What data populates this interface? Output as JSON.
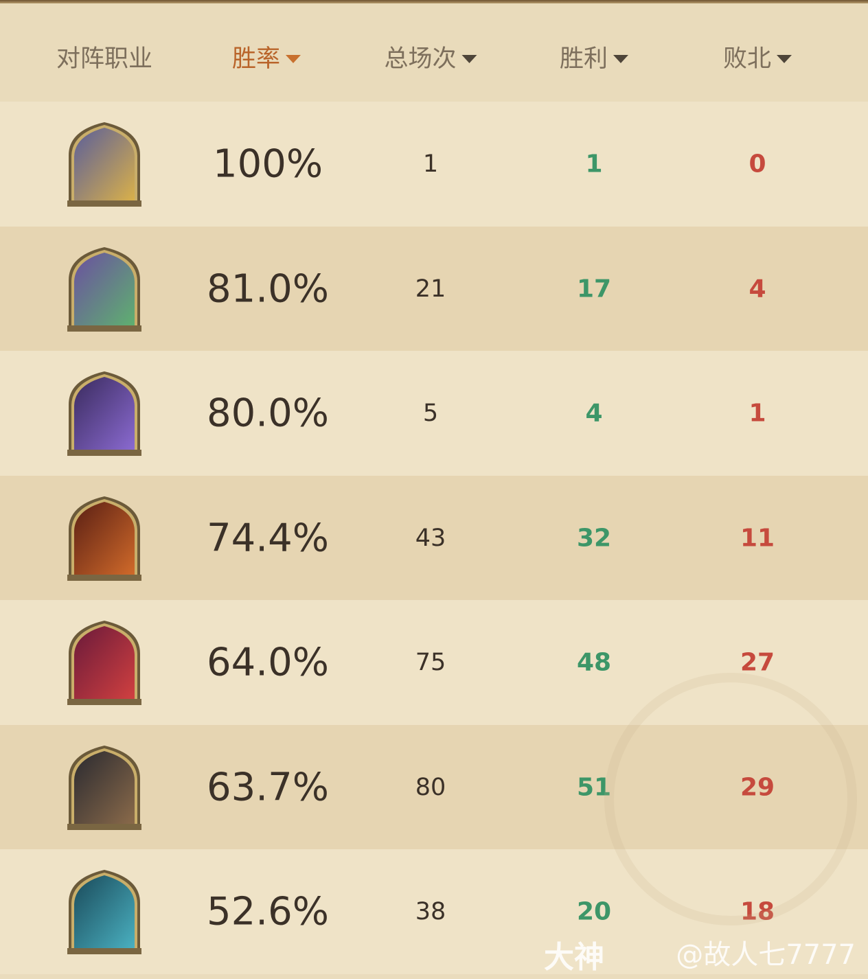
{
  "header": {
    "columns": [
      {
        "label": "对阵职业",
        "sortable": false,
        "active": false
      },
      {
        "label": "胜率",
        "sortable": true,
        "active": true
      },
      {
        "label": "总场次",
        "sortable": true,
        "active": false
      },
      {
        "label": "胜利",
        "sortable": true,
        "active": false
      },
      {
        "label": "败北",
        "sortable": true,
        "active": false
      }
    ]
  },
  "colors": {
    "accent": "#b9642a",
    "win": "#3d9668",
    "loss": "#c64a3d"
  },
  "rows": [
    {
      "hero": "paladin-portrait",
      "win_rate": "100%",
      "total": "1",
      "wins": "1",
      "losses": "0",
      "c1": "#5a5e9a",
      "c2": "#d9b04a"
    },
    {
      "hero": "druid-portrait",
      "win_rate": "81.0%",
      "total": "21",
      "wins": "17",
      "losses": "4",
      "c1": "#6b4fa0",
      "c2": "#5fb070"
    },
    {
      "hero": "warlock-portrait",
      "win_rate": "80.0%",
      "total": "5",
      "wins": "4",
      "losses": "1",
      "c1": "#3a2b5e",
      "c2": "#8a6ad0"
    },
    {
      "hero": "warrior-portrait",
      "win_rate": "74.4%",
      "total": "43",
      "wins": "32",
      "losses": "11",
      "c1": "#5a1f14",
      "c2": "#d06a2a"
    },
    {
      "hero": "mage-portrait",
      "win_rate": "64.0%",
      "total": "75",
      "wins": "48",
      "losses": "27",
      "c1": "#6a1a3a",
      "c2": "#d04040"
    },
    {
      "hero": "shaman-portrait",
      "win_rate": "63.7%",
      "total": "80",
      "wins": "51",
      "losses": "29",
      "c1": "#2a2a30",
      "c2": "#8a6a4a"
    },
    {
      "hero": "rogue-portrait",
      "win_rate": "52.6%",
      "total": "38",
      "wins": "20",
      "losses": "18",
      "c1": "#1a4a5a",
      "c2": "#4ab0c0"
    }
  ],
  "watermark": {
    "brand": "大神",
    "user": "@故人七7777"
  }
}
